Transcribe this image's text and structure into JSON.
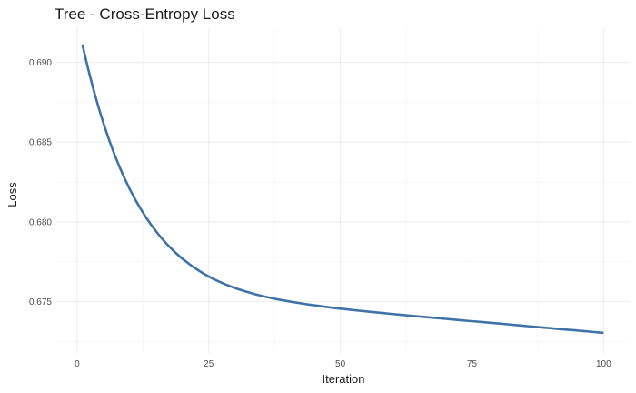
{
  "chart_data": {
    "type": "line",
    "title": "Tree - Cross-Entropy Loss",
    "xlabel": "Iteration",
    "ylabel": "Loss",
    "xlim": [
      -3.95,
      104.95
    ],
    "ylim": [
      0.67177,
      0.69215
    ],
    "x_ticks": [
      0,
      25,
      50,
      75,
      100
    ],
    "x_tick_labels": [
      "0",
      "25",
      "50",
      "75",
      "100"
    ],
    "y_ticks": [
      0.675,
      0.68,
      0.685,
      0.69
    ],
    "y_tick_labels": [
      "0.675",
      "0.680",
      "0.685",
      "0.690"
    ],
    "grid": true,
    "line_color": "#3f73a8",
    "series": [
      {
        "x": [
          1,
          2,
          3,
          4,
          5,
          6,
          7,
          8,
          9,
          10,
          11,
          12,
          13,
          14,
          15,
          16,
          17,
          18,
          19,
          20,
          22,
          24,
          26,
          28,
          30,
          32,
          34,
          36,
          38,
          40,
          42,
          44,
          46,
          48,
          50,
          52,
          54,
          56,
          58,
          60,
          62,
          64,
          66,
          68,
          70,
          72,
          74,
          76,
          78,
          80,
          82,
          84,
          86,
          88,
          90,
          92,
          94,
          96,
          98,
          100
        ],
        "y": [
          0.69113,
          0.68972,
          0.68844,
          0.68726,
          0.68619,
          0.68521,
          0.68431,
          0.68349,
          0.68274,
          0.68205,
          0.68142,
          0.68085,
          0.68032,
          0.67984,
          0.6794,
          0.67899,
          0.67862,
          0.67828,
          0.67797,
          0.67768,
          0.67718,
          0.67675,
          0.67639,
          0.6761,
          0.67584,
          0.67563,
          0.67544,
          0.67528,
          0.67514,
          0.67502,
          0.67491,
          0.67481,
          0.67472,
          0.67463,
          0.67455,
          0.67448,
          0.67441,
          0.67434,
          0.67428,
          0.67421,
          0.67415,
          0.67409,
          0.67403,
          0.67397,
          0.67391,
          0.67385,
          0.67379,
          0.67374,
          0.67368,
          0.67362,
          0.67356,
          0.6735,
          0.67344,
          0.67338,
          0.67332,
          0.67326,
          0.67321,
          0.67315,
          0.67309,
          0.67303
        ]
      }
    ]
  }
}
